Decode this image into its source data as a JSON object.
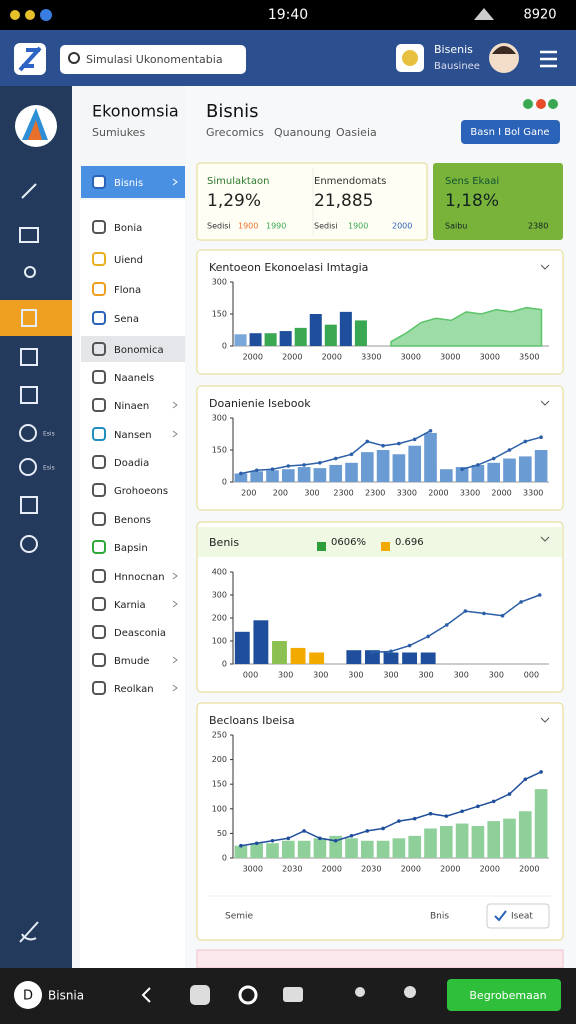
{
  "status_bar": {
    "time": "19:40",
    "battery": "8920"
  },
  "header": {
    "search_placeholder": "Simulasi Ukonomentabia",
    "user_name": "Bisenis",
    "user_sub": "Bausinee"
  },
  "sidebar": {
    "badges": [
      "Esis",
      "Esis"
    ]
  },
  "nav": {
    "title": "Ekonomsia",
    "subtitle": "Sumiukes",
    "items": [
      "Bisnis",
      "Bonia",
      "Uiend",
      "Flona",
      "Sena",
      "Bonomica",
      "Naanels",
      "Ninaen",
      "Nansen",
      "Doadia",
      "Grohoeons",
      "Benons",
      "Bapsin",
      "Hnnocnan",
      "Karnia",
      "Deasconia",
      "Bmude",
      "Reolkan"
    ]
  },
  "main": {
    "title": "Bisnis",
    "tabs": [
      "Grecomics",
      "Quanoung",
      "Oasieia"
    ],
    "button": "Basn I Bol Gane"
  },
  "stats": [
    {
      "label": "Simulaktaon",
      "value": "1,29%",
      "foot": [
        "Sedisi",
        "1900",
        "1990"
      ]
    },
    {
      "label": "Enmendomats",
      "value": "21,885",
      "foot": [
        "Sedisi",
        "1900",
        "2000"
      ]
    },
    {
      "label": "Sens Ekaai",
      "value": "1,18%",
      "foot": [
        "Saibu",
        "2380"
      ]
    }
  ],
  "charts": [
    {
      "title": "Kentoeon Ekonoelasi Imtagia",
      "ylim": [
        0,
        300
      ],
      "yticks": [
        0,
        150,
        300
      ],
      "xlabels": [
        "2000",
        "2000",
        "2000",
        "3300",
        "3000",
        "3000",
        "3000",
        "3500"
      ],
      "bars": [
        55,
        60,
        60,
        70,
        85,
        150,
        100,
        160,
        120
      ],
      "bar_colors": [
        "#7aa7d9",
        "#1f4e9c",
        "#3aa853",
        "#1f4e9c",
        "#3aa853",
        "#1f4e9c",
        "#3aa853",
        "#1f4e9c",
        "#3aa853"
      ],
      "line": [
        null,
        null,
        null,
        null,
        null,
        null,
        null,
        null,
        null,
        null,
        20,
        60,
        110,
        130,
        120,
        160,
        150,
        170,
        160,
        180,
        170
      ],
      "line_kind": "area",
      "line_color": "#5cc46a"
    },
    {
      "title": "Doanienie Isebook",
      "ylim": [
        0,
        300
      ],
      "yticks": [
        0,
        150,
        300
      ],
      "xlabels": [
        "200",
        "200",
        "300",
        "2300",
        "2300",
        "3300",
        "2000",
        "3300",
        "2000",
        "3300"
      ],
      "bars": [
        40,
        50,
        55,
        60,
        70,
        65,
        80,
        90,
        140,
        150,
        130,
        170,
        230,
        60,
        70,
        80,
        90,
        110,
        120,
        150
      ],
      "bar_colors": [
        "#6b9bd3"
      ],
      "line": [
        40,
        55,
        60,
        75,
        80,
        90,
        110,
        130,
        190,
        170,
        180,
        200,
        240,
        null,
        60,
        80,
        110,
        150,
        190,
        210
      ],
      "line_kind": "line",
      "line_color": "#2b5fa8"
    },
    {
      "title": "Benis",
      "legend": [
        {
          "label": "0606%",
          "color": "#2e9e3a"
        },
        {
          "label": "0.696",
          "color": "#f2a900"
        }
      ],
      "ylim": [
        0,
        400
      ],
      "yticks": [
        0,
        100,
        200,
        300,
        400
      ],
      "xlabels": [
        "000",
        "300",
        "300",
        "300",
        "300",
        "300",
        "300",
        "300",
        "000"
      ],
      "bars": [
        140,
        190,
        100,
        70,
        50,
        null,
        60,
        60,
        50,
        50,
        50
      ],
      "bar_colors": [
        "#1f4e9c",
        "#1f4e9c",
        "#8cc152",
        "#f2a900",
        "#f2a900",
        "#1f4e9c",
        "#1f4e9c",
        "#1f4e9c",
        "#1f4e9c",
        "#1f4e9c",
        "#1f4e9c"
      ],
      "line": [
        null,
        null,
        null,
        null,
        null,
        null,
        null,
        50,
        55,
        80,
        120,
        170,
        230,
        220,
        210,
        270,
        300
      ],
      "line_kind": "line",
      "line_color": "#2b5fa8"
    },
    {
      "title": "Becloans Ibeisa",
      "ylim": [
        0,
        250
      ],
      "yticks": [
        0,
        50,
        100,
        150,
        200,
        250
      ],
      "xlabels": [
        "3000",
        "2030",
        "2000",
        "2030",
        "2000",
        "2000",
        "2000",
        "2000"
      ],
      "bars": [
        25,
        30,
        30,
        35,
        35,
        40,
        45,
        40,
        35,
        35,
        40,
        45,
        60,
        65,
        70,
        65,
        75,
        80,
        95,
        140
      ],
      "bar_colors": [
        "#8fcf9a"
      ],
      "line": [
        25,
        30,
        35,
        40,
        55,
        40,
        35,
        45,
        55,
        60,
        75,
        80,
        90,
        85,
        95,
        105,
        115,
        130,
        160,
        175
      ],
      "line_kind": "line",
      "line_color": "#1f4e9c",
      "footer": [
        "Semie",
        "Bnis",
        "Iseat"
      ]
    }
  ],
  "bottom_bar": {
    "badge": "D",
    "brand": "Bisnia",
    "button": "Begrobemaan"
  }
}
